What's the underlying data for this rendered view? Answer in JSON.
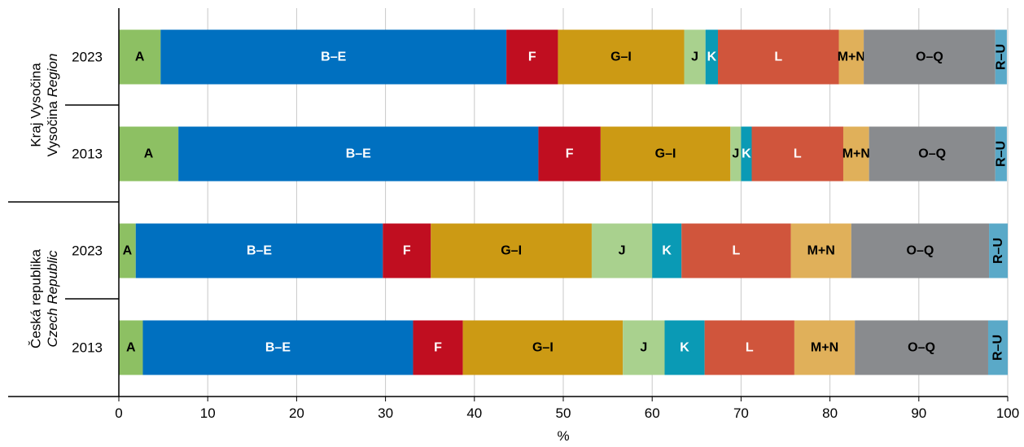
{
  "chart_data": {
    "type": "bar",
    "orientation": "horizontal",
    "stacked": true,
    "xlabel": "%",
    "xlim": [
      0,
      100
    ],
    "xticks": [
      0,
      10,
      20,
      30,
      40,
      50,
      60,
      70,
      80,
      90,
      100
    ],
    "grid": true,
    "segment_names": [
      "A",
      "B–E",
      "F",
      "G–I",
      "J",
      "K",
      "L",
      "M+N",
      "O–Q",
      "R–U"
    ],
    "segment_colors": [
      "#8dc063",
      "#0070c0",
      "#c00e20",
      "#cc9a14",
      "#a9d18e",
      "#0a9ab5",
      "#d0553c",
      "#e0b05a",
      "#898b8e",
      "#5aa9c8"
    ],
    "segment_label_colors": [
      "#000000",
      "#ffffff",
      "#ffffff",
      "#000000",
      "#000000",
      "#ffffff",
      "#ffffff",
      "#000000",
      "#000000",
      "#000000"
    ],
    "groups": [
      {
        "label_line1": "Kraj Vysočina",
        "label_line2_prefix": "Vysočina ",
        "label_line2_italic": "Region",
        "rows": [
          {
            "year": "2023",
            "values": [
              4.7,
              38.9,
              5.8,
              14.2,
              2.4,
              1.4,
              13.6,
              2.8,
              14.8,
              1.3
            ]
          },
          {
            "year": "2013",
            "values": [
              6.7,
              40.5,
              7.0,
              14.6,
              1.2,
              1.2,
              10.3,
              2.9,
              14.2,
              1.3
            ]
          }
        ]
      },
      {
        "label_line1": "Česká republika",
        "label_line2_prefix": "",
        "label_line2_italic": "Czech Republic",
        "rows": [
          {
            "year": "2023",
            "values": [
              1.9,
              27.8,
              5.4,
              18.1,
              6.8,
              3.3,
              12.3,
              6.8,
              15.5,
              2.1
            ]
          },
          {
            "year": "2013",
            "values": [
              2.7,
              30.4,
              5.6,
              18.0,
              4.7,
              4.5,
              10.1,
              6.8,
              15.0,
              2.2
            ]
          }
        ]
      }
    ]
  }
}
